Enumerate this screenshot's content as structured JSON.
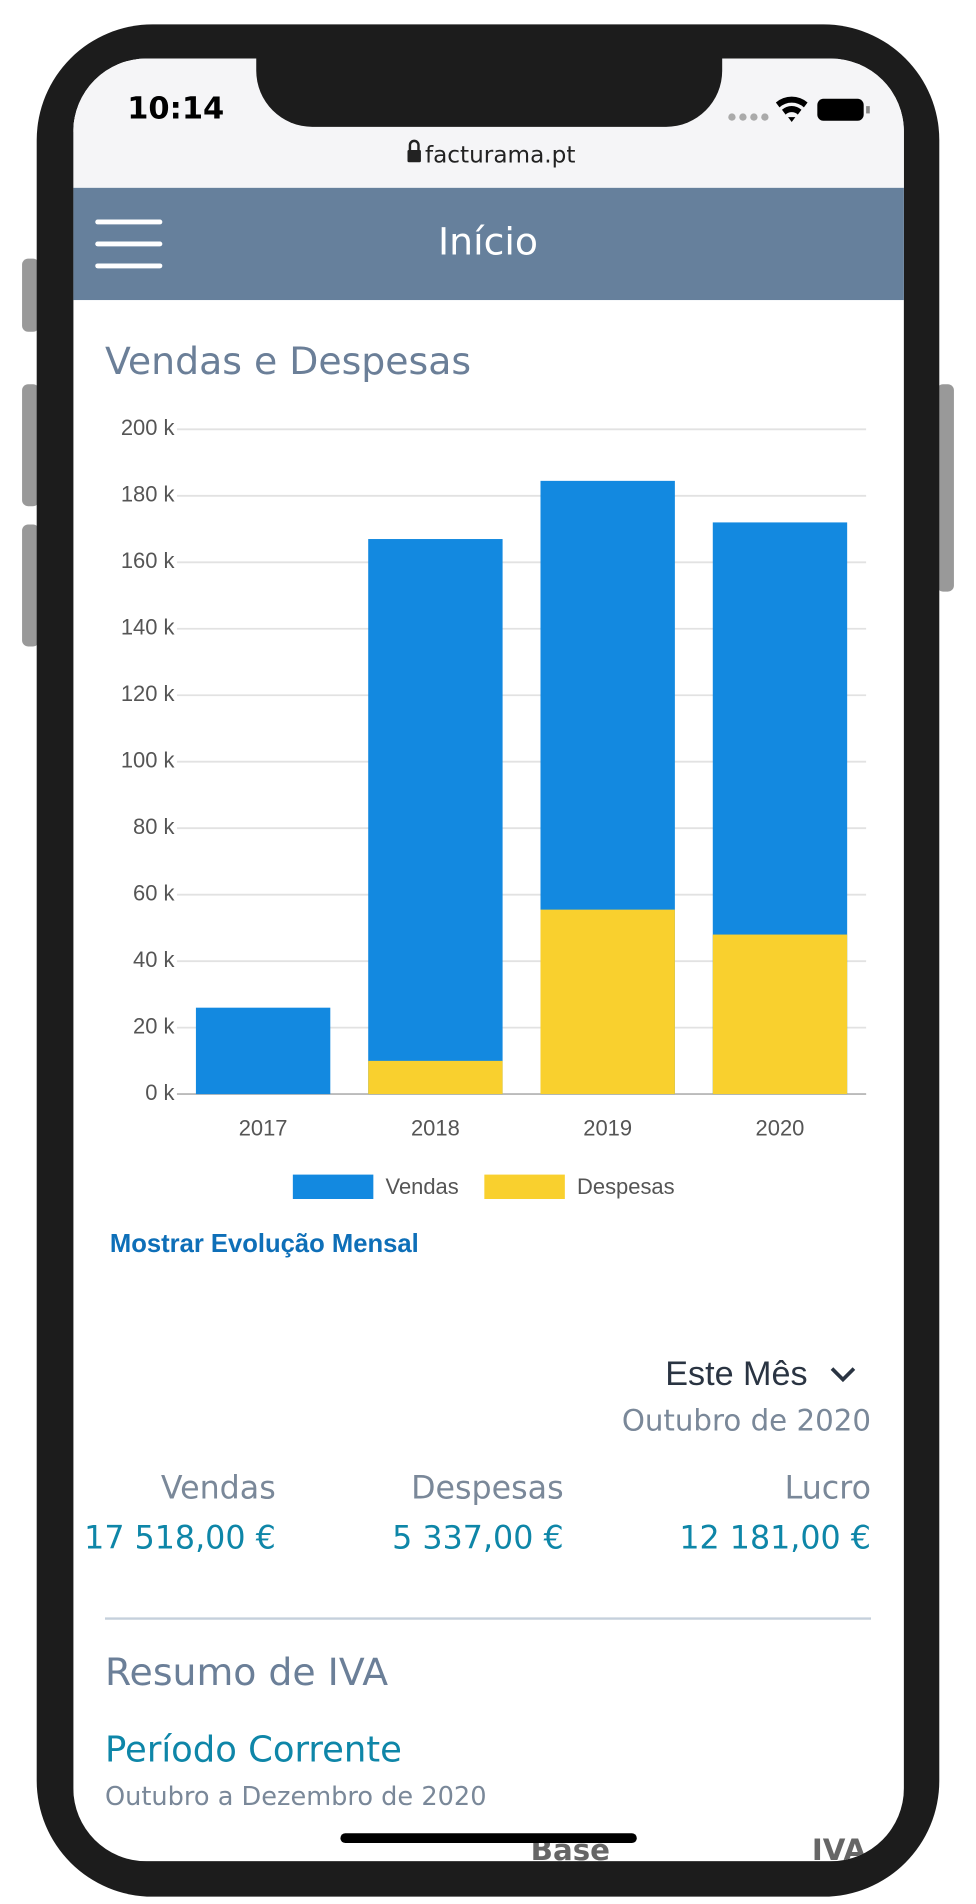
{
  "status_bar": {
    "time": "10:14",
    "url": "facturama.pt"
  },
  "header": {
    "title": "Início"
  },
  "chart_data": {
    "type": "bar",
    "title": "Vendas e Despesas",
    "categories": [
      "2017",
      "2018",
      "2019",
      "2020"
    ],
    "series": [
      {
        "name": "Vendas",
        "color": "#1389e0",
        "values": [
          26,
          167,
          184.5,
          172
        ]
      },
      {
        "name": "Despesas",
        "color": "#f9d02e",
        "values": [
          0,
          10,
          55.5,
          48
        ]
      }
    ],
    "ylim": [
      0,
      200
    ],
    "yticks": [
      {
        "value": 0,
        "label": "0 k"
      },
      {
        "value": 20,
        "label": "20 k"
      },
      {
        "value": 40,
        "label": "40 k"
      },
      {
        "value": 60,
        "label": "60 k"
      },
      {
        "value": 80,
        "label": "80 k"
      },
      {
        "value": 100,
        "label": "100 k"
      },
      {
        "value": 120,
        "label": "120 k"
      },
      {
        "value": 140,
        "label": "140 k"
      },
      {
        "value": 160,
        "label": "160 k"
      },
      {
        "value": 180,
        "label": "180 k"
      },
      {
        "value": 200,
        "label": "200 k"
      }
    ],
    "grid": true,
    "legend": "bottom"
  },
  "link": "Mostrar Evolução Mensal",
  "period": {
    "selector": "Este Mês",
    "label": "Outubro de 2020"
  },
  "stats": [
    {
      "label": "Vendas",
      "value": "17 518,00 €"
    },
    {
      "label": "Despesas",
      "value": "5 337,00 €"
    },
    {
      "label": "Lucro",
      "value": "12 181,00 €"
    }
  ],
  "vat": {
    "title": "Resumo de IVA",
    "period_title": "Período Corrente",
    "period": "Outubro a Dezembro de 2020",
    "columns": [
      "Base",
      "IVA"
    ]
  }
}
